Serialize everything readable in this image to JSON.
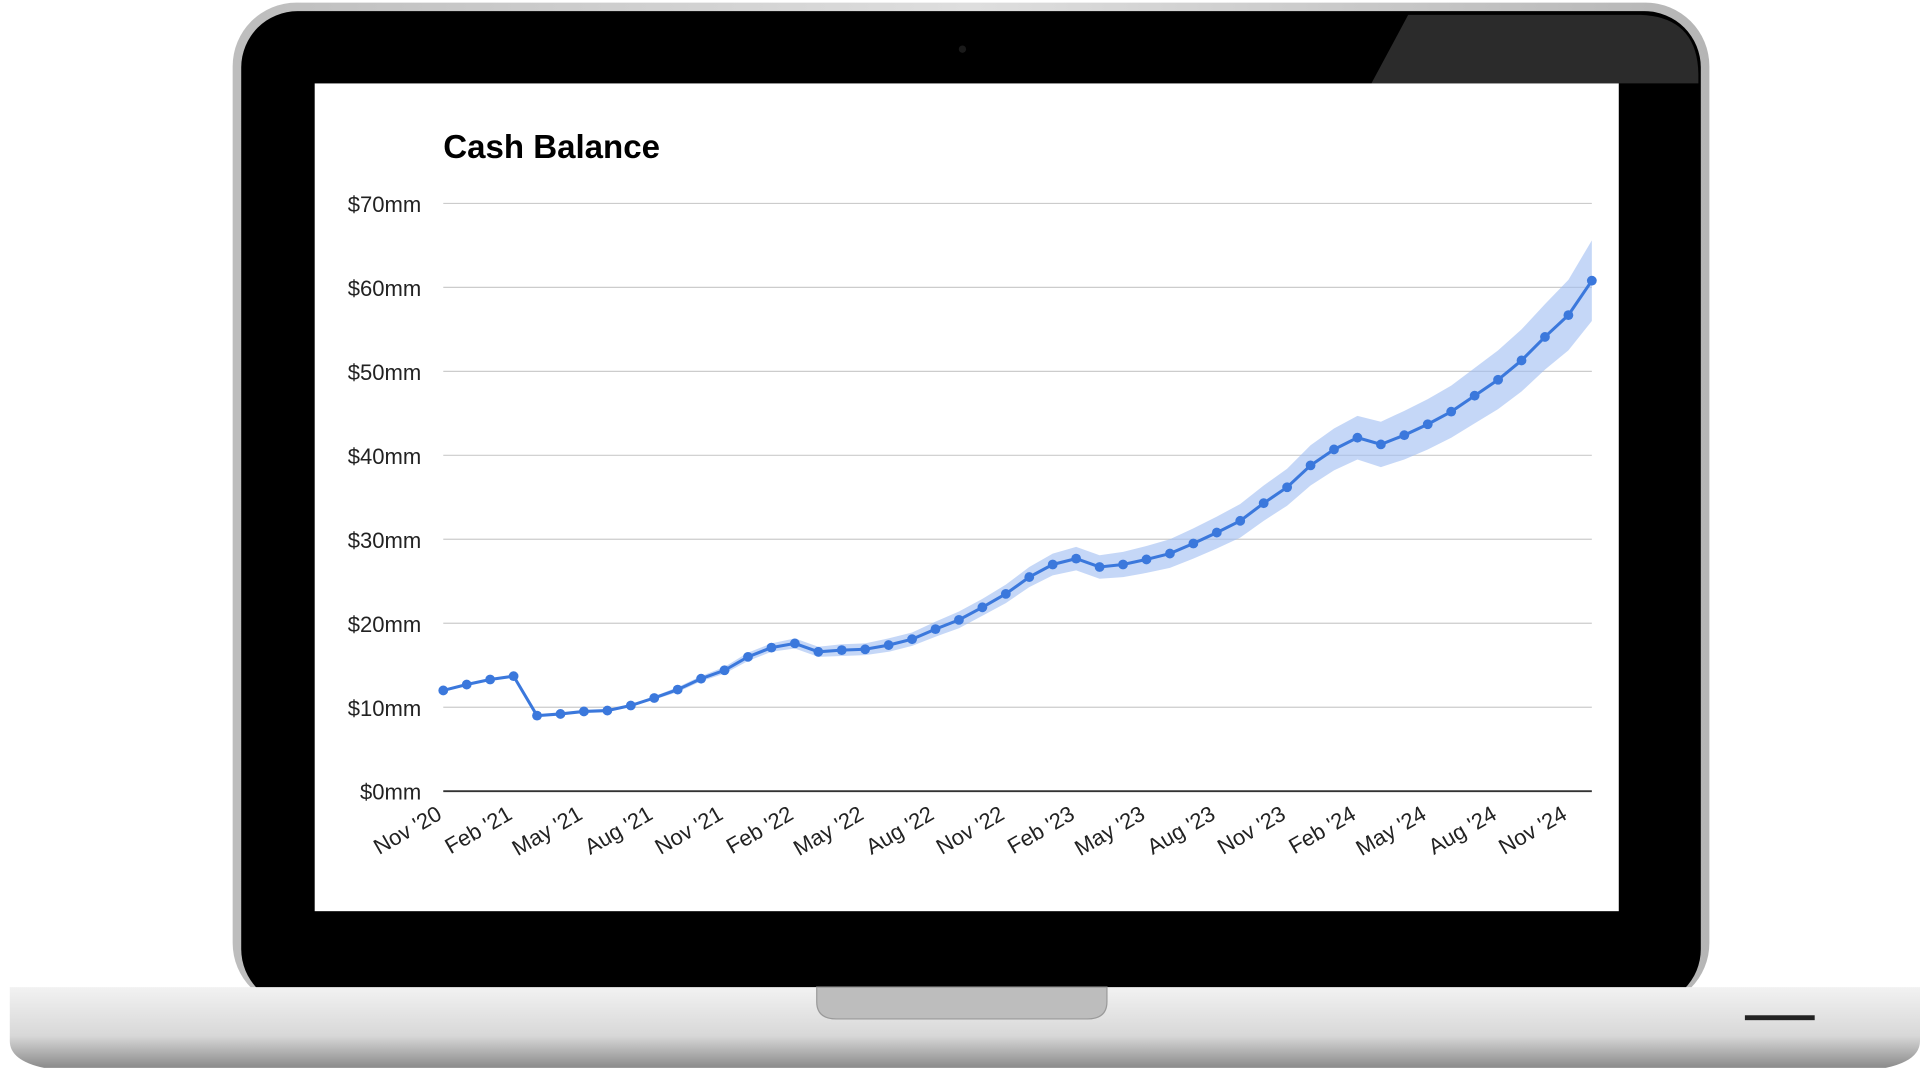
{
  "chart_data": {
    "type": "line",
    "title": "Cash Balance",
    "categories": [
      "Nov '20",
      null,
      null,
      "Feb '21",
      null,
      null,
      "May '21",
      null,
      null,
      "Aug '21",
      null,
      null,
      "Nov '21",
      null,
      null,
      "Feb '22",
      null,
      null,
      "May '22",
      null,
      null,
      "Aug '22",
      null,
      null,
      "Nov '22",
      null,
      null,
      "Feb '23",
      null,
      null,
      "May '23",
      null,
      null,
      "Aug '23",
      null,
      null,
      "Nov '23",
      null,
      null,
      "Feb '24",
      null,
      null,
      "May '24",
      null,
      null,
      "Aug '24",
      null,
      null,
      "Nov '24",
      null
    ],
    "values": [
      12.0,
      12.7,
      13.3,
      13.7,
      9.0,
      9.2,
      9.5,
      9.6,
      10.2,
      11.1,
      12.1,
      13.4,
      14.4,
      16.0,
      17.1,
      17.6,
      16.6,
      16.8,
      16.9,
      17.4,
      18.1,
      19.3,
      20.4,
      21.9,
      23.5,
      25.5,
      27.0,
      27.7,
      26.7,
      27.0,
      27.6,
      28.3,
      29.5,
      30.8,
      32.2,
      34.3,
      36.2,
      38.8,
      40.7,
      42.1,
      41.3,
      42.4,
      43.7,
      45.2,
      47.1,
      49.0,
      51.3,
      54.1,
      56.7,
      60.8
    ],
    "upper": [
      12.0,
      12.7,
      13.3,
      13.7,
      9.0,
      9.2,
      9.5,
      9.6,
      10.2,
      11.3,
      12.4,
      13.7,
      14.8,
      16.5,
      17.6,
      18.2,
      17.2,
      17.5,
      17.6,
      18.2,
      18.9,
      20.2,
      21.4,
      22.9,
      24.6,
      26.7,
      28.3,
      29.1,
      28.1,
      28.5,
      29.2,
      30.0,
      31.3,
      32.7,
      34.2,
      36.4,
      38.4,
      41.2,
      43.2,
      44.7,
      44.0,
      45.3,
      46.7,
      48.3,
      50.4,
      52.5,
      55.0,
      58.0,
      60.9,
      65.6
    ],
    "lower": [
      12.0,
      12.7,
      13.3,
      13.7,
      9.0,
      9.2,
      9.5,
      9.6,
      10.2,
      10.9,
      11.8,
      13.1,
      14.0,
      15.5,
      16.6,
      17.0,
      16.0,
      16.1,
      16.2,
      16.6,
      17.3,
      18.4,
      19.4,
      20.9,
      22.4,
      24.3,
      25.7,
      26.3,
      25.3,
      25.5,
      26.0,
      26.6,
      27.7,
      28.9,
      30.2,
      32.2,
      34.0,
      36.4,
      38.2,
      39.5,
      38.6,
      39.5,
      40.7,
      42.1,
      43.8,
      45.5,
      47.6,
      50.2,
      52.5,
      56.0
    ],
    "color": "#3b78dc",
    "band_color": "#9fbdf2",
    "ylim": [
      0,
      70
    ],
    "yticks": [
      {
        "value": 0,
        "label": "$0mm"
      },
      {
        "value": 10,
        "label": "$10mm"
      },
      {
        "value": 20,
        "label": "$20mm"
      },
      {
        "value": 30,
        "label": "$30mm"
      },
      {
        "value": 40,
        "label": "$40mm"
      },
      {
        "value": 50,
        "label": "$50mm"
      },
      {
        "value": 60,
        "label": "$60mm"
      },
      {
        "value": 70,
        "label": "$70mm"
      }
    ],
    "grid": true
  }
}
